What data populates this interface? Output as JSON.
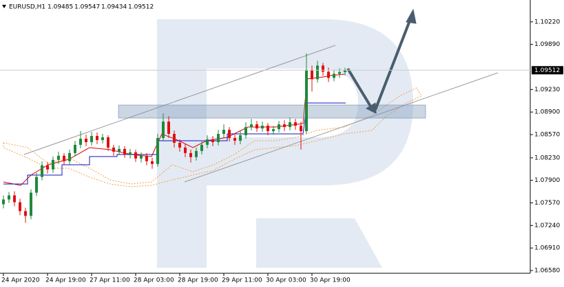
{
  "chart_data": {
    "type": "candlestick",
    "title": "EURUSD,H1",
    "ohlc": [
      1.09485,
      1.09547,
      1.09434,
      1.09512
    ],
    "last_price": 1.09512,
    "up_color": "#1e8a3c",
    "down_color": "#e01010",
    "ylim": [
      1.0654,
      1.1054
    ],
    "yticks": [
      {
        "value": 1.1022,
        "label": "1.10220"
      },
      {
        "value": 1.0989,
        "label": "1.09890"
      },
      {
        "value": 1.0923,
        "label": "1.09230"
      },
      {
        "value": 1.089,
        "label": "1.08900"
      },
      {
        "value": 1.0857,
        "label": "1.08570"
      },
      {
        "value": 1.0823,
        "label": "1.08230"
      },
      {
        "value": 1.079,
        "label": "1.07900"
      },
      {
        "value": 1.0757,
        "label": "1.07570"
      },
      {
        "value": 1.0724,
        "label": "1.07240"
      },
      {
        "value": 1.0691,
        "label": "1.06910"
      },
      {
        "value": 1.0658,
        "label": "1.06580"
      }
    ],
    "xticks": [
      {
        "value": 0,
        "label": "24 Apr 2020"
      },
      {
        "value": 8,
        "label": "24 Apr 19:00"
      },
      {
        "value": 16,
        "label": "27 Apr 11:00"
      },
      {
        "value": 24,
        "label": "28 Apr 03:00"
      },
      {
        "value": 32,
        "label": "28 Apr 19:00"
      },
      {
        "value": 40,
        "label": "29 Apr 11:00"
      },
      {
        "value": 48,
        "label": "30 Apr 03:00"
      },
      {
        "value": 56,
        "label": "30 Apr 19:00"
      }
    ],
    "open": [
      1.0755,
      1.0762,
      1.0768,
      1.0758,
      1.0745,
      1.0738,
      1.0772,
      1.0795,
      1.0812,
      1.0806,
      1.082,
      1.0826,
      1.0818,
      1.083,
      1.0842,
      1.0851,
      1.0846,
      1.0855,
      1.0849,
      1.0853,
      1.0838,
      1.0832,
      1.0836,
      1.0828,
      1.0831,
      1.0822,
      1.0826,
      1.0818,
      1.0814,
      1.0852,
      1.0876,
      1.0858,
      1.0845,
      1.0838,
      1.083,
      1.0824,
      1.0833,
      1.0842,
      1.085,
      1.0846,
      1.0858,
      1.0864,
      1.0852,
      1.0848,
      1.0856,
      1.0868,
      1.0872,
      1.0866,
      1.087,
      1.0862,
      1.0865,
      1.0872,
      1.0868,
      1.0875,
      1.087,
      1.0862,
      1.0952,
      1.0938,
      1.0958,
      1.0949,
      1.094,
      1.0946,
      1.09485
    ],
    "high": [
      1.0768,
      1.0773,
      1.0774,
      1.0763,
      1.075,
      1.0777,
      1.0801,
      1.0818,
      1.0817,
      1.0825,
      1.0832,
      1.083,
      1.0835,
      1.0848,
      1.0862,
      1.0857,
      1.0861,
      1.086,
      1.0858,
      1.0856,
      1.0842,
      1.0841,
      1.084,
      1.0836,
      1.0835,
      1.0831,
      1.083,
      1.0823,
      1.0858,
      1.0888,
      1.0884,
      1.0863,
      1.085,
      1.0843,
      1.0835,
      1.0838,
      1.0847,
      1.0856,
      1.0855,
      1.0864,
      1.0872,
      1.0868,
      1.0857,
      1.0862,
      1.0875,
      1.088,
      1.0877,
      1.0876,
      1.0874,
      1.087,
      1.0877,
      1.0878,
      1.0882,
      1.088,
      1.0876,
      1.0976,
      1.0958,
      1.0965,
      1.0962,
      1.0955,
      1.0952,
      1.0954,
      1.09547
    ],
    "low": [
      1.0749,
      1.0757,
      1.0752,
      1.0739,
      1.0728,
      1.0733,
      1.0767,
      1.079,
      1.08,
      1.0801,
      1.0814,
      1.0812,
      1.0813,
      1.0825,
      1.0837,
      1.084,
      1.0841,
      1.0843,
      1.0844,
      1.0833,
      1.0826,
      1.0827,
      1.0823,
      1.0822,
      1.0817,
      1.0816,
      1.0812,
      1.0807,
      1.081,
      1.0848,
      1.0852,
      1.0838,
      1.0832,
      1.0824,
      1.0816,
      1.0819,
      1.0828,
      1.0837,
      1.084,
      1.0841,
      1.0852,
      1.0847,
      1.0842,
      1.0843,
      1.0851,
      1.0863,
      1.0861,
      1.0861,
      1.0856,
      1.0857,
      1.086,
      1.0862,
      1.0863,
      1.0864,
      1.0835,
      1.0858,
      1.092,
      1.0933,
      1.0943,
      1.0934,
      1.0935,
      1.094,
      1.09434
    ],
    "close": [
      1.0762,
      1.0768,
      1.0758,
      1.0745,
      1.0738,
      1.0772,
      1.0795,
      1.0812,
      1.0806,
      1.082,
      1.0826,
      1.0818,
      1.083,
      1.0842,
      1.0851,
      1.0846,
      1.0855,
      1.0849,
      1.0853,
      1.0838,
      1.0832,
      1.0836,
      1.0828,
      1.0831,
      1.0822,
      1.0826,
      1.0818,
      1.0814,
      1.0852,
      1.0876,
      1.0858,
      1.0845,
      1.0838,
      1.083,
      1.0824,
      1.0833,
      1.0842,
      1.085,
      1.0846,
      1.0858,
      1.0864,
      1.0852,
      1.0848,
      1.0856,
      1.0868,
      1.0872,
      1.0866,
      1.087,
      1.0862,
      1.0865,
      1.0872,
      1.0868,
      1.0875,
      1.087,
      1.0862,
      1.0952,
      1.0938,
      1.0958,
      1.0949,
      1.094,
      1.0946,
      1.09485,
      1.09512
    ]
  }
}
